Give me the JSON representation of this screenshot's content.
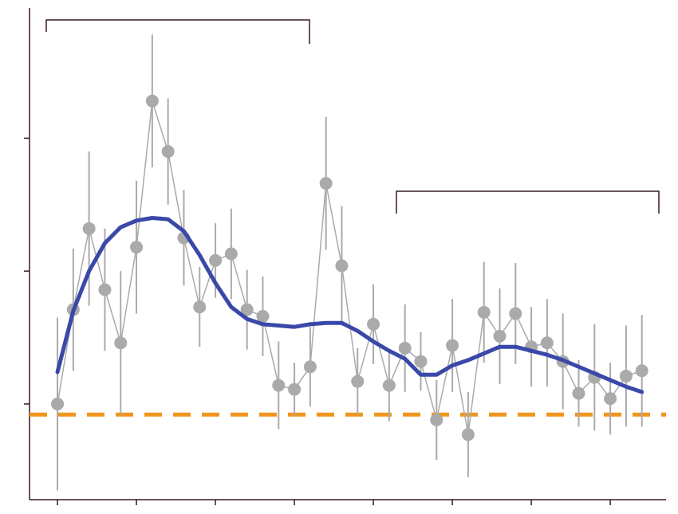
{
  "chart_data": {
    "type": "line",
    "x": [
      0,
      1,
      2,
      3,
      4,
      5,
      6,
      7,
      8,
      9,
      10,
      11,
      12,
      13,
      14,
      15,
      16,
      17,
      18,
      19,
      20,
      21,
      22,
      23,
      24,
      25,
      26,
      27,
      28,
      29,
      30,
      31,
      32,
      33,
      34,
      35,
      36,
      37
    ],
    "series": [
      {
        "color": "#aaaaaa",
        "markers": true,
        "values": [
          0,
          0.71,
          1.32,
          0.86,
          0.46,
          1.18,
          2.28,
          1.9,
          1.25,
          0.73,
          1.08,
          1.13,
          0.71,
          0.66,
          0.14,
          0.11,
          0.28,
          1.66,
          1.04,
          0.17,
          0.6,
          0.14,
          0.42,
          0.32,
          -0.12,
          0.44,
          -0.23,
          0.69,
          0.51,
          0.68,
          0.43,
          0.46,
          0.32,
          0.08,
          0.2,
          0.04,
          0.21,
          0.25
        ],
        "errors": [
          0.65,
          0.46,
          0.58,
          0.46,
          0.54,
          0.5,
          0.5,
          0.4,
          0.36,
          0.3,
          0.28,
          0.34,
          0.3,
          0.3,
          0.33,
          0.2,
          0.3,
          0.5,
          0.45,
          0.25,
          0.3,
          0.27,
          0.33,
          0.22,
          0.3,
          0.35,
          0.32,
          0.38,
          0.36,
          0.38,
          0.3,
          0.33,
          0.36,
          0.25,
          0.4,
          0.27,
          0.38,
          0.42
        ]
      },
      {
        "color": "#3a48a8",
        "markers": false,
        "values": [
          0.24,
          0.7,
          1.0,
          1.21,
          1.33,
          1.38,
          1.4,
          1.39,
          1.3,
          1.12,
          0.91,
          0.73,
          0.64,
          0.6,
          0.59,
          0.58,
          0.6,
          0.61,
          0.61,
          0.55,
          0.47,
          0.4,
          0.34,
          0.22,
          0.22,
          0.29,
          0.33,
          0.38,
          0.43,
          0.43,
          0.4,
          0.37,
          0.33,
          0.28,
          0.23,
          0.18,
          0.13,
          0.09
        ]
      }
    ],
    "hlines": [
      {
        "value": -0.08,
        "color": "#f0961e",
        "dash": true
      }
    ],
    "xlim": [
      -1.77,
      38.53
    ],
    "xticks": [
      0,
      5,
      10,
      15,
      20,
      25,
      30,
      35
    ],
    "ylim": [
      -0.72,
      2.98
    ],
    "yticks": [
      0,
      1,
      2
    ]
  }
}
